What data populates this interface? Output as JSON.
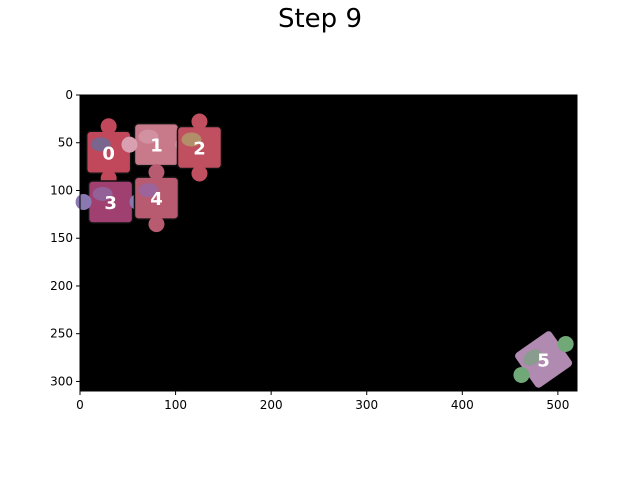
{
  "figure": {
    "title": "Step 9"
  },
  "board": {
    "background_color": "#000000",
    "x_range": [
      0,
      520
    ],
    "y_range": [
      310,
      0
    ],
    "x_ticks": [
      0,
      100,
      200,
      300,
      400,
      500
    ],
    "y_ticks": [
      0,
      50,
      100,
      150,
      200,
      250,
      300
    ]
  },
  "pieces": [
    {
      "id": "0",
      "label": "0",
      "center": [
        30,
        60
      ],
      "color": "#c0485a",
      "alt_color": "#4a7ab0"
    },
    {
      "id": "1",
      "label": "1",
      "center": [
        80,
        52
      ],
      "color": "#c87a8a",
      "alt_color": "#d8a0b0"
    },
    {
      "id": "2",
      "label": "2",
      "center": [
        125,
        55
      ],
      "color": "#c05060",
      "alt_color": "#a8b870"
    },
    {
      "id": "3",
      "label": "3",
      "center": [
        32,
        112
      ],
      "color": "#a04070",
      "alt_color": "#8a78b0"
    },
    {
      "id": "4",
      "label": "4",
      "center": [
        80,
        108
      ],
      "color": "#b85a70",
      "alt_color": "#8a6ab8"
    },
    {
      "id": "5",
      "label": "5",
      "center": [
        485,
        277
      ],
      "color": "#b08ab0",
      "alt_color": "#70a878"
    }
  ]
}
